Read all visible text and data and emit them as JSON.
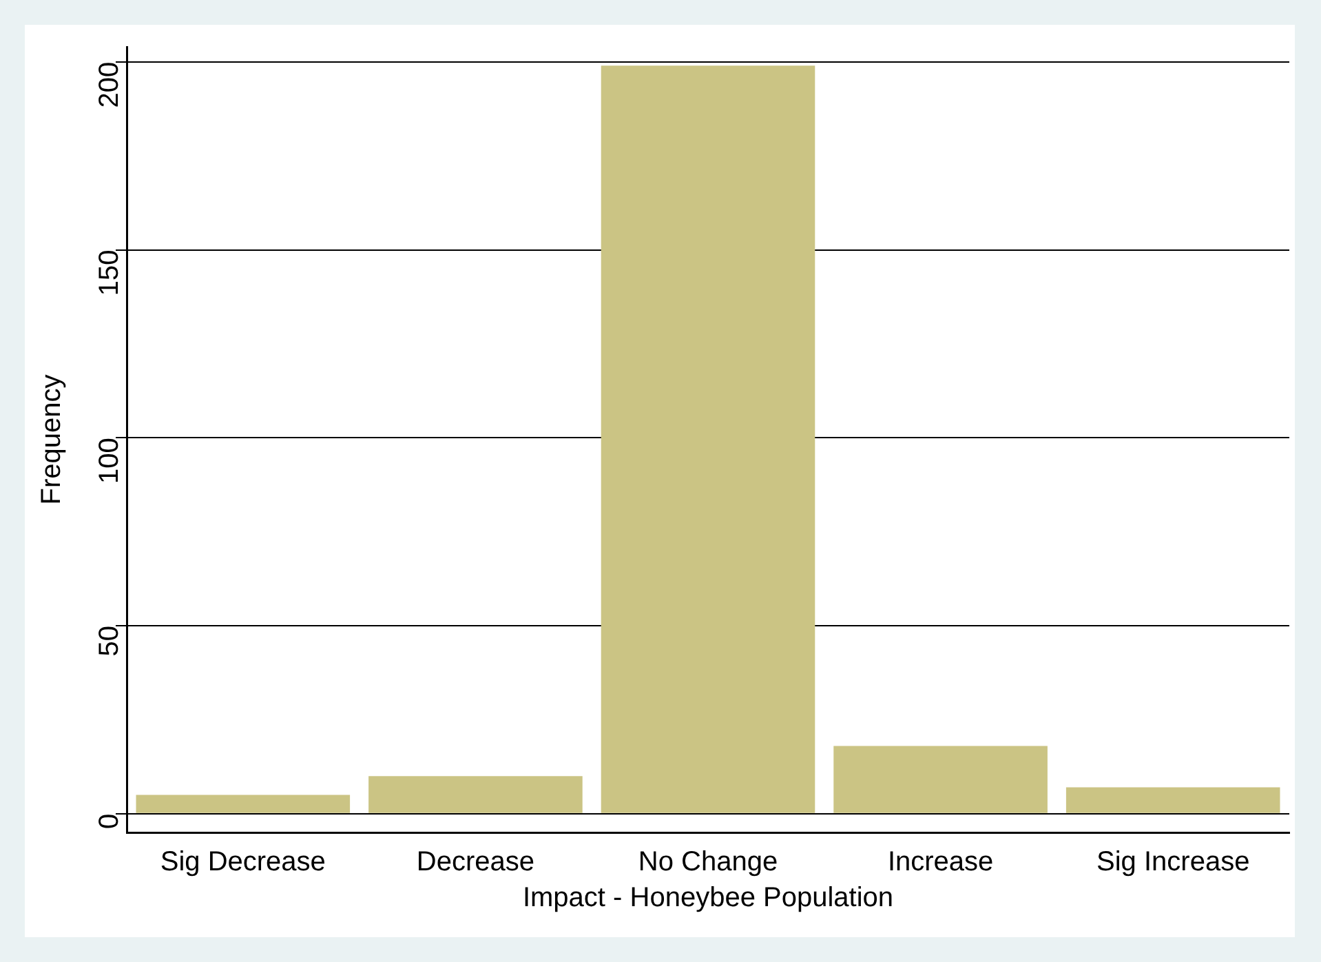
{
  "chart_data": {
    "type": "bar",
    "xlabel": "Impact - Honeybee Population",
    "ylabel": "Frequency",
    "categories": [
      "Sig Decrease",
      "Decrease",
      "No Change",
      "Increase",
      "Sig Increase"
    ],
    "values": [
      5,
      10,
      199,
      18,
      7
    ],
    "color": "#cbc484",
    "ylim": [
      -5,
      204
    ],
    "yticks": [
      0,
      50,
      100,
      150,
      200
    ],
    "grid": "y",
    "legend": false
  }
}
